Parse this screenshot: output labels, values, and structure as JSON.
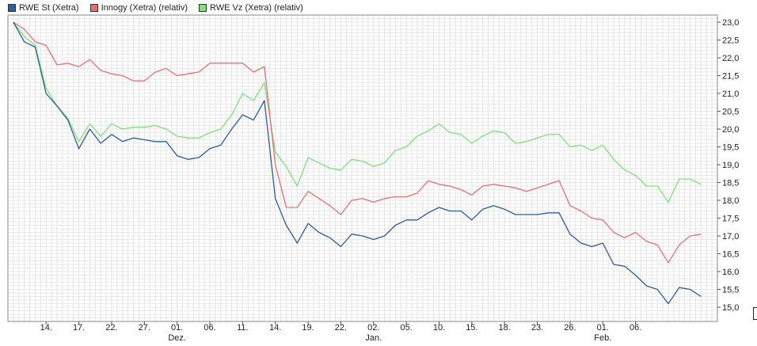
{
  "chart_data": {
    "type": "line",
    "ylim": [
      14.6,
      23.2
    ],
    "y_ticks": [
      "23,0",
      "22,5",
      "22,0",
      "21,5",
      "21,0",
      "20,5",
      "20,0",
      "19,5",
      "19,0",
      "18,5",
      "18,0",
      "17,5",
      "17,0",
      "16,5",
      "16,0",
      "15,5",
      "15,0"
    ],
    "x_tick_labels": [
      {
        "i": 7,
        "label": "14."
      },
      {
        "i": 13,
        "label": "17."
      },
      {
        "i": 19,
        "label": "22."
      },
      {
        "i": 25,
        "label": "27."
      },
      {
        "i": 31,
        "label": "01."
      },
      {
        "i": 37,
        "label": "06."
      },
      {
        "i": 43,
        "label": "11."
      },
      {
        "i": 49,
        "label": "14."
      },
      {
        "i": 55,
        "label": "19."
      },
      {
        "i": 61,
        "label": "22."
      },
      {
        "i": 67,
        "label": "02."
      },
      {
        "i": 73,
        "label": "05."
      },
      {
        "i": 79,
        "label": "10."
      },
      {
        "i": 85,
        "label": "15."
      },
      {
        "i": 91,
        "label": "18."
      },
      {
        "i": 97,
        "label": "23."
      },
      {
        "i": 103,
        "label": "26."
      },
      {
        "i": 109,
        "label": "01."
      },
      {
        "i": 115,
        "label": "06."
      }
    ],
    "month_labels": [
      {
        "i": 31,
        "label": "Dez."
      },
      {
        "i": 67,
        "label": "Jan."
      },
      {
        "i": 109,
        "label": "Feb."
      }
    ],
    "grid": true,
    "legend_position": "top-left",
    "series": [
      {
        "name": "RWE St (Xetra)",
        "color": "#2e5d9a",
        "points": [
          [
            1,
            23.0
          ],
          [
            3,
            22.45
          ],
          [
            5,
            22.3
          ],
          [
            7,
            21.0
          ],
          [
            9,
            20.65
          ],
          [
            11,
            20.25
          ],
          [
            13,
            19.45
          ],
          [
            15,
            20.0
          ],
          [
            17,
            19.6
          ],
          [
            19,
            19.85
          ],
          [
            21,
            19.65
          ],
          [
            23,
            19.75
          ],
          [
            25,
            19.7
          ],
          [
            27,
            19.65
          ],
          [
            29,
            19.65
          ],
          [
            31,
            19.25
          ],
          [
            33,
            19.15
          ],
          [
            35,
            19.2
          ],
          [
            37,
            19.45
          ],
          [
            39,
            19.55
          ],
          [
            41,
            20.0
          ],
          [
            43,
            20.4
          ],
          [
            45,
            20.25
          ],
          [
            47,
            20.8
          ],
          [
            49,
            18.05
          ],
          [
            51,
            17.3
          ],
          [
            53,
            16.8
          ],
          [
            55,
            17.35
          ],
          [
            57,
            17.1
          ],
          [
            59,
            16.95
          ],
          [
            61,
            16.7
          ],
          [
            63,
            17.05
          ],
          [
            65,
            17.0
          ],
          [
            67,
            16.9
          ],
          [
            69,
            17.0
          ],
          [
            71,
            17.3
          ],
          [
            73,
            17.45
          ],
          [
            75,
            17.45
          ],
          [
            77,
            17.65
          ],
          [
            79,
            17.8
          ],
          [
            81,
            17.7
          ],
          [
            83,
            17.7
          ],
          [
            85,
            17.45
          ],
          [
            87,
            17.75
          ],
          [
            89,
            17.85
          ],
          [
            91,
            17.75
          ],
          [
            93,
            17.6
          ],
          [
            95,
            17.6
          ],
          [
            97,
            17.6
          ],
          [
            99,
            17.65
          ],
          [
            101,
            17.65
          ],
          [
            103,
            17.05
          ],
          [
            105,
            16.8
          ],
          [
            107,
            16.7
          ],
          [
            109,
            16.8
          ],
          [
            111,
            16.2
          ],
          [
            113,
            16.15
          ],
          [
            115,
            15.9
          ],
          [
            117,
            15.6
          ],
          [
            119,
            15.5
          ],
          [
            121,
            15.1
          ],
          [
            123,
            15.55
          ],
          [
            125,
            15.5
          ],
          [
            127,
            15.3
          ]
        ]
      },
      {
        "name": "Innogy (Xetra) (relativ)",
        "color": "#e87070",
        "points": [
          [
            1,
            23.0
          ],
          [
            3,
            22.8
          ],
          [
            5,
            22.45
          ],
          [
            7,
            22.35
          ],
          [
            9,
            21.8
          ],
          [
            11,
            21.85
          ],
          [
            13,
            21.75
          ],
          [
            15,
            21.95
          ],
          [
            17,
            21.65
          ],
          [
            19,
            21.55
          ],
          [
            21,
            21.5
          ],
          [
            23,
            21.35
          ],
          [
            25,
            21.35
          ],
          [
            27,
            21.6
          ],
          [
            29,
            21.7
          ],
          [
            31,
            21.5
          ],
          [
            33,
            21.55
          ],
          [
            35,
            21.6
          ],
          [
            37,
            21.85
          ],
          [
            39,
            21.85
          ],
          [
            41,
            21.85
          ],
          [
            43,
            21.85
          ],
          [
            45,
            21.6
          ],
          [
            47,
            21.75
          ],
          [
            49,
            19.0
          ],
          [
            51,
            17.8
          ],
          [
            53,
            17.8
          ],
          [
            55,
            18.25
          ],
          [
            57,
            18.05
          ],
          [
            59,
            17.85
          ],
          [
            61,
            17.6
          ],
          [
            63,
            18.0
          ],
          [
            65,
            18.05
          ],
          [
            67,
            17.95
          ],
          [
            69,
            18.05
          ],
          [
            71,
            18.1
          ],
          [
            73,
            18.1
          ],
          [
            75,
            18.2
          ],
          [
            77,
            18.55
          ],
          [
            79,
            18.45
          ],
          [
            81,
            18.4
          ],
          [
            83,
            18.3
          ],
          [
            85,
            18.15
          ],
          [
            87,
            18.4
          ],
          [
            89,
            18.45
          ],
          [
            91,
            18.4
          ],
          [
            93,
            18.35
          ],
          [
            95,
            18.25
          ],
          [
            97,
            18.35
          ],
          [
            99,
            18.45
          ],
          [
            101,
            18.55
          ],
          [
            103,
            17.85
          ],
          [
            105,
            17.7
          ],
          [
            107,
            17.5
          ],
          [
            109,
            17.45
          ],
          [
            111,
            17.1
          ],
          [
            113,
            16.95
          ],
          [
            115,
            17.1
          ],
          [
            117,
            16.85
          ],
          [
            119,
            16.75
          ],
          [
            121,
            16.25
          ],
          [
            123,
            16.75
          ],
          [
            125,
            17.0
          ],
          [
            127,
            17.05
          ]
        ]
      },
      {
        "name": "RWE Vz (Xetra) (relativ)",
        "color": "#80e07a",
        "points": [
          [
            1,
            23.0
          ],
          [
            3,
            22.6
          ],
          [
            5,
            22.35
          ],
          [
            7,
            21.15
          ],
          [
            9,
            20.65
          ],
          [
            11,
            20.3
          ],
          [
            13,
            19.65
          ],
          [
            15,
            20.15
          ],
          [
            17,
            19.8
          ],
          [
            19,
            20.15
          ],
          [
            21,
            20.0
          ],
          [
            23,
            20.05
          ],
          [
            25,
            20.05
          ],
          [
            27,
            20.1
          ],
          [
            29,
            20.0
          ],
          [
            31,
            19.8
          ],
          [
            33,
            19.75
          ],
          [
            35,
            19.75
          ],
          [
            37,
            19.9
          ],
          [
            39,
            20.0
          ],
          [
            41,
            20.4
          ],
          [
            43,
            21.0
          ],
          [
            45,
            20.8
          ],
          [
            47,
            21.3
          ],
          [
            49,
            19.35
          ],
          [
            51,
            18.95
          ],
          [
            53,
            18.4
          ],
          [
            55,
            19.2
          ],
          [
            57,
            19.05
          ],
          [
            59,
            18.9
          ],
          [
            61,
            18.85
          ],
          [
            63,
            19.15
          ],
          [
            65,
            19.1
          ],
          [
            67,
            18.95
          ],
          [
            69,
            19.05
          ],
          [
            71,
            19.4
          ],
          [
            73,
            19.5
          ],
          [
            75,
            19.8
          ],
          [
            77,
            19.95
          ],
          [
            79,
            20.15
          ],
          [
            81,
            19.9
          ],
          [
            83,
            19.85
          ],
          [
            85,
            19.6
          ],
          [
            87,
            19.8
          ],
          [
            89,
            19.95
          ],
          [
            91,
            19.9
          ],
          [
            93,
            19.6
          ],
          [
            95,
            19.65
          ],
          [
            97,
            19.75
          ],
          [
            99,
            19.85
          ],
          [
            101,
            19.85
          ],
          [
            103,
            19.5
          ],
          [
            105,
            19.55
          ],
          [
            107,
            19.4
          ],
          [
            109,
            19.55
          ],
          [
            111,
            19.15
          ],
          [
            113,
            18.85
          ],
          [
            115,
            18.7
          ],
          [
            117,
            18.4
          ],
          [
            119,
            18.4
          ],
          [
            121,
            17.95
          ],
          [
            123,
            18.6
          ],
          [
            125,
            18.6
          ],
          [
            127,
            18.45
          ]
        ]
      }
    ]
  }
}
